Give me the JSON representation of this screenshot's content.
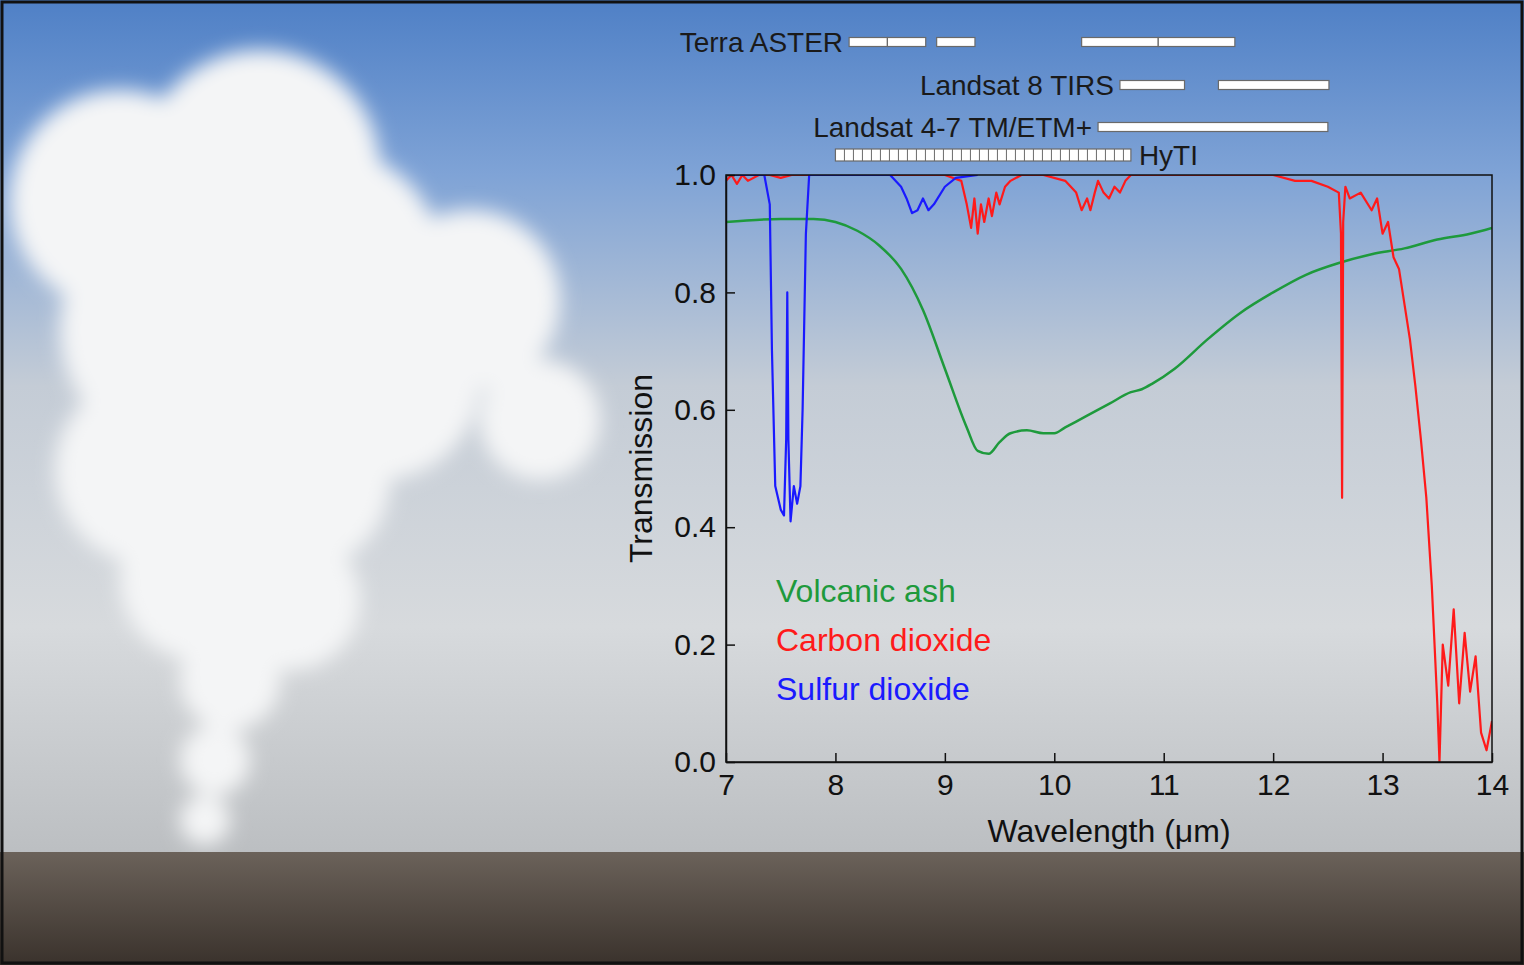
{
  "chart_data": {
    "type": "line",
    "xlabel": "Wavelength (μm)",
    "ylabel": "Transmission",
    "xlim": [
      7,
      14
    ],
    "ylim": [
      0,
      1
    ],
    "xticks": [
      7,
      8,
      9,
      10,
      11,
      12,
      13,
      14
    ],
    "yticks": [
      {
        "value": 0,
        "label": "0.0"
      },
      {
        "value": 0.2,
        "label": "0.2"
      },
      {
        "value": 0.4,
        "label": "0.4"
      },
      {
        "value": 0.6,
        "label": "0.6"
      },
      {
        "value": 0.8,
        "label": "0.8"
      },
      {
        "value": 1,
        "label": "1.0"
      }
    ],
    "grid": false,
    "legend": "bottom left",
    "series": [
      {
        "name": "Volcanic ash",
        "color": "#1e9a3c",
        "x": [
          7,
          7.5,
          7.8,
          8.0,
          8.2,
          8.4,
          8.6,
          8.8,
          9.0,
          9.2,
          9.3,
          9.4,
          9.5,
          9.6,
          9.75,
          9.9,
          10.0,
          10.1,
          10.3,
          10.5,
          10.7,
          10.8,
          10.9,
          11.1,
          11.4,
          11.7,
          12.0,
          12.3,
          12.6,
          12.9,
          13.2,
          13.5,
          13.8,
          14.0
        ],
        "values": [
          0.92,
          0.925,
          0.925,
          0.92,
          0.905,
          0.88,
          0.84,
          0.77,
          0.67,
          0.57,
          0.53,
          0.525,
          0.545,
          0.56,
          0.565,
          0.56,
          0.56,
          0.57,
          0.59,
          0.61,
          0.63,
          0.635,
          0.645,
          0.67,
          0.72,
          0.765,
          0.8,
          0.83,
          0.85,
          0.865,
          0.875,
          0.89,
          0.9,
          0.91
        ]
      },
      {
        "name": "Carbon dioxide",
        "color": "#ff1a1a",
        "x": [
          7.0,
          7.05,
          7.1,
          7.15,
          7.2,
          7.3,
          7.4,
          7.5,
          7.6,
          7.8,
          8.0,
          8.5,
          9.0,
          9.15,
          9.2,
          9.24,
          9.27,
          9.3,
          9.33,
          9.36,
          9.4,
          9.43,
          9.47,
          9.5,
          9.55,
          9.6,
          9.7,
          9.9,
          10.1,
          10.2,
          10.25,
          10.3,
          10.33,
          10.37,
          10.4,
          10.45,
          10.5,
          10.55,
          10.6,
          10.65,
          10.7,
          10.8,
          11.0,
          11.5,
          12.0,
          12.2,
          12.35,
          12.5,
          12.6,
          12.62,
          12.63,
          12.64,
          12.66,
          12.7,
          12.8,
          12.9,
          12.95,
          13.0,
          13.05,
          13.1,
          13.15,
          13.2,
          13.25,
          13.3,
          13.35,
          13.4,
          13.45,
          13.5,
          13.52,
          13.55,
          13.6,
          13.65,
          13.7,
          13.75,
          13.8,
          13.85,
          13.9,
          13.95,
          14.0
        ],
        "values": [
          0.99,
          1.0,
          0.985,
          1.0,
          0.99,
          1.0,
          1.0,
          0.995,
          1.0,
          1.0,
          1.0,
          1.0,
          1.0,
          0.99,
          0.95,
          0.91,
          0.96,
          0.9,
          0.95,
          0.92,
          0.96,
          0.93,
          0.97,
          0.95,
          0.98,
          0.99,
          1.0,
          1.0,
          0.99,
          0.97,
          0.94,
          0.96,
          0.94,
          0.97,
          0.99,
          0.97,
          0.96,
          0.98,
          0.97,
          0.99,
          1.0,
          1.0,
          1.0,
          1.0,
          1.0,
          0.99,
          0.99,
          0.98,
          0.97,
          0.9,
          0.45,
          0.92,
          0.98,
          0.96,
          0.97,
          0.94,
          0.96,
          0.9,
          0.92,
          0.86,
          0.84,
          0.78,
          0.72,
          0.64,
          0.55,
          0.45,
          0.3,
          0.1,
          0.0,
          0.2,
          0.13,
          0.26,
          0.1,
          0.22,
          0.12,
          0.18,
          0.05,
          0.02,
          0.07
        ]
      },
      {
        "name": "Sulfur dioxide",
        "color": "#1a1aff",
        "x": [
          7.0,
          7.35,
          7.4,
          7.42,
          7.45,
          7.5,
          7.53,
          7.55,
          7.56,
          7.57,
          7.59,
          7.62,
          7.65,
          7.68,
          7.7,
          7.73,
          7.76,
          7.8,
          8.0,
          8.5,
          8.6,
          8.65,
          8.7,
          8.75,
          8.8,
          8.85,
          8.9,
          9.0,
          9.1,
          9.3
        ],
        "values": [
          1.0,
          1.0,
          0.95,
          0.7,
          0.47,
          0.43,
          0.42,
          0.55,
          0.8,
          0.55,
          0.41,
          0.47,
          0.44,
          0.47,
          0.6,
          0.9,
          1.0,
          1.0,
          1.0,
          1.0,
          0.98,
          0.96,
          0.935,
          0.94,
          0.96,
          0.94,
          0.95,
          0.98,
          0.995,
          1.0
        ]
      }
    ],
    "bands": [
      {
        "name": "Terra ASTER",
        "line_style": "solid",
        "ranges": [
          [
            8.125,
            8.475
          ],
          [
            8.475,
            8.825
          ],
          [
            8.925,
            9.275
          ],
          [
            10.25,
            10.95
          ],
          [
            10.95,
            11.65
          ]
        ]
      },
      {
        "name": "Landsat 8 TIRS",
        "line_style": "solid",
        "ranges": [
          [
            10.6,
            11.19
          ],
          [
            11.5,
            12.51
          ]
        ]
      },
      {
        "name": "Landsat 4-7 TM/ETM+",
        "line_style": "solid",
        "ranges": [
          [
            10.4,
            12.5
          ]
        ]
      },
      {
        "name": "HyTI",
        "line_style": "dotted",
        "ranges": [
          [
            8.0,
            10.7
          ]
        ]
      }
    ]
  }
}
